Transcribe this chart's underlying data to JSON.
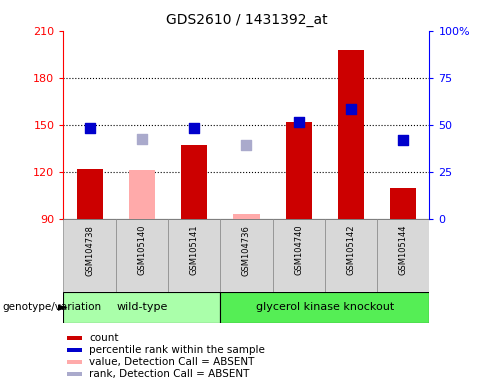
{
  "title": "GDS2610 / 1431392_at",
  "samples": [
    "GSM104738",
    "GSM105140",
    "GSM105141",
    "GSM104736",
    "GSM104740",
    "GSM105142",
    "GSM105144"
  ],
  "bar_values": [
    122,
    121,
    137,
    93,
    152,
    198,
    110
  ],
  "bar_absent": [
    false,
    true,
    false,
    true,
    false,
    false,
    false
  ],
  "dot_values": [
    148,
    null,
    148,
    null,
    152,
    160,
    140
  ],
  "rank_absent_values": [
    null,
    141,
    null,
    137,
    null,
    null,
    null
  ],
  "ylim_left": [
    90,
    210
  ],
  "ylim_right": [
    0,
    100
  ],
  "yticks_left": [
    90,
    120,
    150,
    180,
    210
  ],
  "yticks_right": [
    0,
    25,
    50,
    75,
    100
  ],
  "ytick_labels_right": [
    "0",
    "25",
    "50",
    "75",
    "100%"
  ],
  "grid_lines": [
    120,
    150,
    180
  ],
  "bar_color_normal": "#cc0000",
  "bar_color_absent": "#ffaaaa",
  "dot_color_present": "#0000cc",
  "dot_color_absent": "#aaaacc",
  "wt_group_indices": [
    0,
    1,
    2
  ],
  "gk_group_indices": [
    3,
    4,
    5,
    6
  ],
  "wt_color": "#aaffaa",
  "gk_color": "#55ee55",
  "bar_width": 0.5,
  "dot_size": 55,
  "genotype_label": "genotype/variation",
  "legend_labels": [
    "count",
    "percentile rank within the sample",
    "value, Detection Call = ABSENT",
    "rank, Detection Call = ABSENT"
  ],
  "legend_colors": [
    "#cc0000",
    "#0000cc",
    "#ffaaaa",
    "#aaaacc"
  ],
  "plot_bg": "#ffffff",
  "fig_bg": "#ffffff"
}
